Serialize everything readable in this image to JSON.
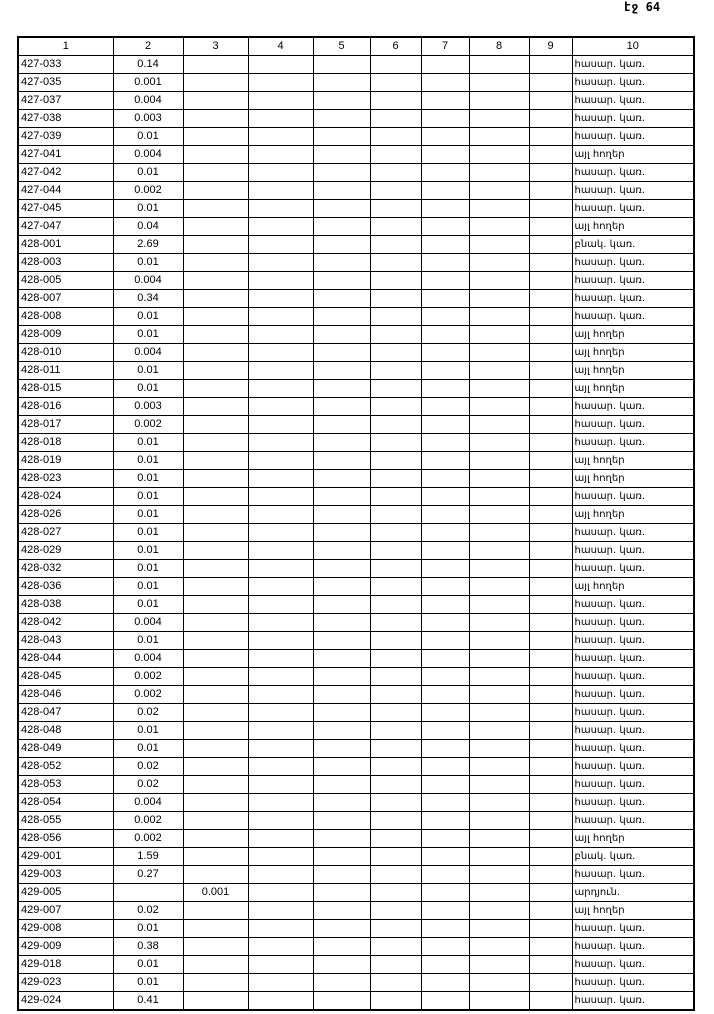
{
  "page_label": "էջ 64",
  "columns": [
    "1",
    "2",
    "3",
    "4",
    "5",
    "6",
    "7",
    "8",
    "9",
    "10"
  ],
  "rows": [
    [
      "427-033",
      "0.14",
      "",
      "հասար. կառ."
    ],
    [
      "427-035",
      "0.001",
      "",
      "հասար. կառ."
    ],
    [
      "427-037",
      "0.004",
      "",
      "հասար. կառ."
    ],
    [
      "427-038",
      "0.003",
      "",
      "հասար. կառ."
    ],
    [
      "427-039",
      "0.01",
      "",
      "հասար. կառ."
    ],
    [
      "427-041",
      "0.004",
      "",
      "այլ հողեր"
    ],
    [
      "427-042",
      "0.01",
      "",
      "հասար. կառ."
    ],
    [
      "427-044",
      "0.002",
      "",
      "հասար. կառ."
    ],
    [
      "427-045",
      "0.01",
      "",
      "հասար. կառ."
    ],
    [
      "427-047",
      "0.04",
      "",
      "այլ հողեր"
    ],
    [
      "428-001",
      "2.69",
      "",
      "բնակ. կառ."
    ],
    [
      "428-003",
      "0.01",
      "",
      "հասար. կառ."
    ],
    [
      "428-005",
      "0.004",
      "",
      "հասար. կառ."
    ],
    [
      "428-007",
      "0.34",
      "",
      "հասար. կառ."
    ],
    [
      "428-008",
      "0.01",
      "",
      "հասար. կառ."
    ],
    [
      "428-009",
      "0.01",
      "",
      "այլ հողեր"
    ],
    [
      "428-010",
      "0.004",
      "",
      "այլ հողեր"
    ],
    [
      "428-011",
      "0.01",
      "",
      "այլ հողեր"
    ],
    [
      "428-015",
      "0.01",
      "",
      "այլ հողեր"
    ],
    [
      "428-016",
      "0.003",
      "",
      "հասար. կառ."
    ],
    [
      "428-017",
      "0.002",
      "",
      "հասար. կառ."
    ],
    [
      "428-018",
      "0.01",
      "",
      "հասար. կառ."
    ],
    [
      "428-019",
      "0.01",
      "",
      "այլ հողեր"
    ],
    [
      "428-023",
      "0.01",
      "",
      "այլ հողեր"
    ],
    [
      "428-024",
      "0.01",
      "",
      "հասար. կառ."
    ],
    [
      "428-026",
      "0.01",
      "",
      "այլ հողեր"
    ],
    [
      "428-027",
      "0.01",
      "",
      "հասար. կառ."
    ],
    [
      "428-029",
      "0.01",
      "",
      "հասար. կառ."
    ],
    [
      "428-032",
      "0.01",
      "",
      "հասար. կառ."
    ],
    [
      "428-036",
      "0.01",
      "",
      "այլ հողեր"
    ],
    [
      "428-038",
      "0.01",
      "",
      "հասար. կառ."
    ],
    [
      "428-042",
      "0.004",
      "",
      "հասար. կառ."
    ],
    [
      "428-043",
      "0.01",
      "",
      "հասար. կառ."
    ],
    [
      "428-044",
      "0.004",
      "",
      "հասար. կառ."
    ],
    [
      "428-045",
      "0.002",
      "",
      "հասար. կառ."
    ],
    [
      "428-046",
      "0.002",
      "",
      "հասար. կառ."
    ],
    [
      "428-047",
      "0.02",
      "",
      "հասար. կառ."
    ],
    [
      "428-048",
      "0.01",
      "",
      "հասար. կառ."
    ],
    [
      "428-049",
      "0.01",
      "",
      "հասար. կառ."
    ],
    [
      "428-052",
      "0.02",
      "",
      "հասար. կառ."
    ],
    [
      "428-053",
      "0.02",
      "",
      "հասար. կառ."
    ],
    [
      "428-054",
      "0.004",
      "",
      "հասար. կառ."
    ],
    [
      "428-055",
      "0.002",
      "",
      "հասար. կառ."
    ],
    [
      "428-056",
      "0.002",
      "",
      "այլ հողեր"
    ],
    [
      "429-001",
      "1.59",
      "",
      "բնակ. կառ."
    ],
    [
      "429-003",
      "0.27",
      "",
      "հասար. կառ."
    ],
    [
      "429-005",
      "",
      "0.001",
      "արդյուն."
    ],
    [
      "429-007",
      "0.02",
      "",
      "այլ հողեր"
    ],
    [
      "429-008",
      "0.01",
      "",
      "հասար. կառ."
    ],
    [
      "429-009",
      "0.38",
      "",
      "հասար. կառ."
    ],
    [
      "429-018",
      "0.01",
      "",
      "հասար. կառ."
    ],
    [
      "429-023",
      "0.01",
      "",
      "հասար. կառ."
    ],
    [
      "429-024",
      "0.41",
      "",
      "հասար. կառ."
    ]
  ]
}
